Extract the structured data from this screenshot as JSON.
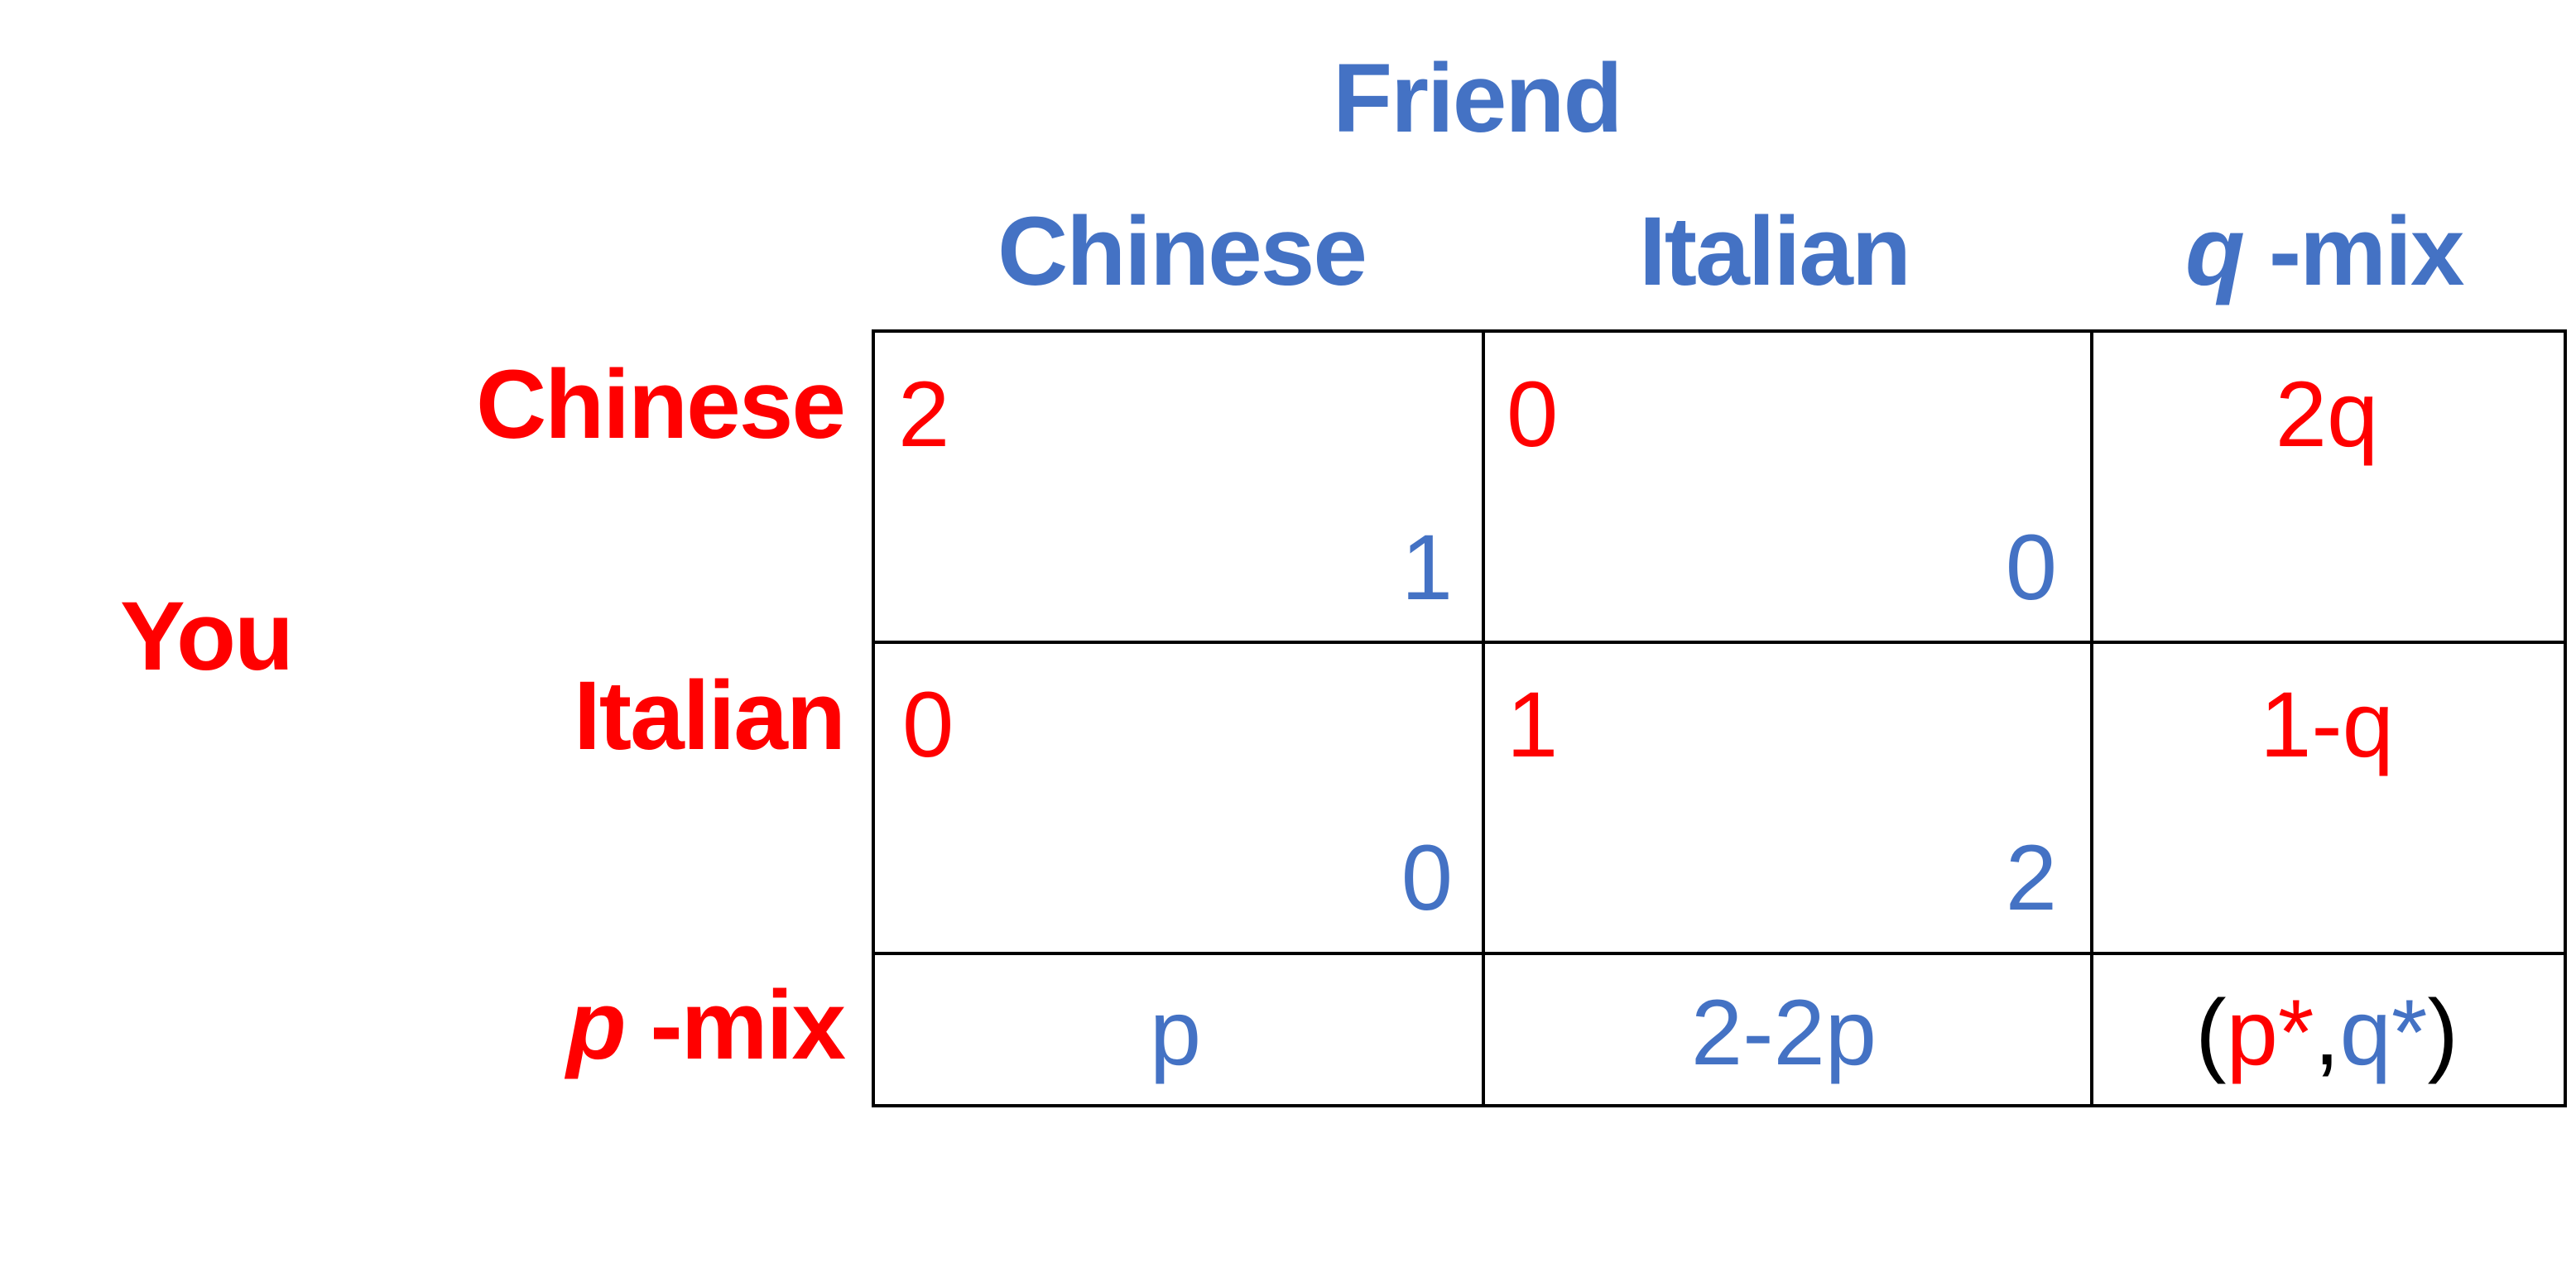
{
  "players": {
    "column": "Friend",
    "row": "You"
  },
  "columns": [
    {
      "label": "Chinese"
    },
    {
      "label": "Italian"
    },
    {
      "var": "q",
      "suffix": " -mix"
    }
  ],
  "rows": [
    {
      "label": "Chinese"
    },
    {
      "label": "Italian"
    },
    {
      "var": "p",
      "suffix": " -mix"
    }
  ],
  "cells": {
    "chinese_chinese": {
      "row_payoff": "2",
      "col_payoff": "1"
    },
    "chinese_italian": {
      "row_payoff": "0",
      "col_payoff": "0"
    },
    "italian_chinese": {
      "row_payoff": "0",
      "col_payoff": "0"
    },
    "italian_italian": {
      "row_payoff": "1",
      "col_payoff": "2"
    }
  },
  "mix_expressions": {
    "row_chinese_vs_qmix": "2q",
    "row_italian_vs_qmix": "1-q",
    "pmix_vs_chinese": "p",
    "pmix_vs_italian": "2-2p",
    "equilibrium": {
      "open": "(",
      "p": "p*",
      "comma": ",",
      "q": "q*",
      "close": ")"
    }
  },
  "colors": {
    "row_player": "#ff0000",
    "column_player": "#4472c4",
    "grid": "#000000"
  }
}
